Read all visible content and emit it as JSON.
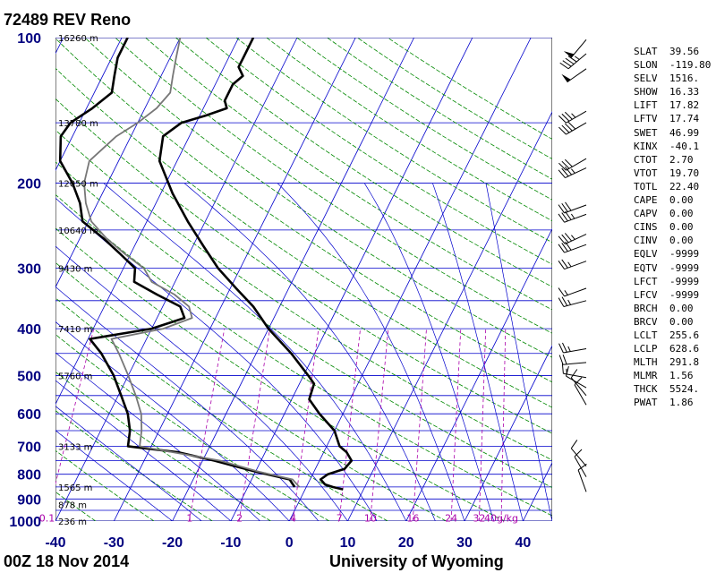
{
  "header": {
    "station": "72489 REV Reno"
  },
  "footer": {
    "time": "00Z 18 Nov 2014",
    "source": "University of Wyoming"
  },
  "colors": {
    "isotherm": "#0000cc",
    "isobar": "#0000cc",
    "dry_adiabat": "#008800",
    "moist_adiabat": "#0000cc",
    "mixing_ratio": "#aa00aa",
    "temperature": "#000000",
    "dewpoint": "#000000",
    "virtual": "#777777"
  },
  "indices": [
    {
      "key": "SLAT",
      "value": "39.56"
    },
    {
      "key": "SLON",
      "value": "-119.80"
    },
    {
      "key": "SELV",
      "value": "1516."
    },
    {
      "key": "SHOW",
      "value": "16.33"
    },
    {
      "key": "LIFT",
      "value": "17.82"
    },
    {
      "key": "LFTV",
      "value": "17.74"
    },
    {
      "key": "SWET",
      "value": "46.99"
    },
    {
      "key": "KINX",
      "value": "-40.1"
    },
    {
      "key": "CTOT",
      "value": "2.70"
    },
    {
      "key": "VTOT",
      "value": "19.70"
    },
    {
      "key": "TOTL",
      "value": "22.40"
    },
    {
      "key": "CAPE",
      "value": "0.00"
    },
    {
      "key": "CAPV",
      "value": "0.00"
    },
    {
      "key": "CINS",
      "value": "0.00"
    },
    {
      "key": "CINV",
      "value": "0.00"
    },
    {
      "key": "EQLV",
      "value": "-9999"
    },
    {
      "key": "EQTV",
      "value": "-9999"
    },
    {
      "key": "LFCT",
      "value": "-9999"
    },
    {
      "key": "LFCV",
      "value": "-9999"
    },
    {
      "key": "BRCH",
      "value": "0.00"
    },
    {
      "key": "BRCV",
      "value": "0.00"
    },
    {
      "key": "LCLT",
      "value": "255.6"
    },
    {
      "key": "LCLP",
      "value": "628.6"
    },
    {
      "key": "MLTH",
      "value": "291.8"
    },
    {
      "key": "MLMR",
      "value": "1.56"
    },
    {
      "key": "THCK",
      "value": "5524."
    },
    {
      "key": "PWAT",
      "value": "1.86"
    }
  ],
  "chart_data": {
    "type": "line",
    "xlim": [
      -40,
      45
    ],
    "ylim": [
      1000,
      100
    ],
    "y_scale": "log",
    "x_ticks": [
      "-40",
      "-30",
      "-20",
      "-10",
      "0",
      "10",
      "20",
      "30",
      "40"
    ],
    "pressure_ticks": [
      "100",
      "200",
      "300",
      "400",
      "500",
      "600",
      "700",
      "800",
      "900",
      "1000"
    ],
    "height_labels": [
      {
        "p": 100,
        "label": "16260 m"
      },
      {
        "p": 150,
        "label": "13780 m"
      },
      {
        "p": 200,
        "label": "12050 m"
      },
      {
        "p": 250,
        "label": "10640 m"
      },
      {
        "p": 300,
        "label": "9430 m"
      },
      {
        "p": 400,
        "label": "7410 m"
      },
      {
        "p": 500,
        "label": "5760 m"
      },
      {
        "p": 700,
        "label": "3133 m"
      },
      {
        "p": 850,
        "label": "1565 m"
      },
      {
        "p": 925,
        "label": "878 m"
      },
      {
        "p": 1000,
        "label": "236 m"
      }
    ],
    "mixing_ratio_labels": [
      {
        "w": 0.1,
        "label": "0.1"
      },
      {
        "w": 1,
        "label": "1"
      },
      {
        "w": 2,
        "label": "2"
      },
      {
        "w": 4,
        "label": "4"
      },
      {
        "w": 7,
        "label": "7"
      },
      {
        "w": 10,
        "label": "10"
      },
      {
        "w": 16,
        "label": "16"
      },
      {
        "w": 24,
        "label": "24"
      },
      {
        "w": 32,
        "label": "32"
      },
      {
        "w": 40,
        "label": "40g/kg"
      }
    ],
    "series": [
      {
        "role": "temperature",
        "points": [
          {
            "p": 860,
            "t": 6.5
          },
          {
            "p": 850,
            "t": 4.5
          },
          {
            "p": 840,
            "t": 3.0
          },
          {
            "p": 820,
            "t": 1.8
          },
          {
            "p": 800,
            "t": 2.6
          },
          {
            "p": 780,
            "t": 5.0
          },
          {
            "p": 750,
            "t": 5.5
          },
          {
            "p": 720,
            "t": 3.9
          },
          {
            "p": 700,
            "t": 2.2
          },
          {
            "p": 650,
            "t": 0.0
          },
          {
            "p": 600,
            "t": -4.0
          },
          {
            "p": 560,
            "t": -7.0
          },
          {
            "p": 520,
            "t": -7.5
          },
          {
            "p": 500,
            "t": -9.2
          },
          {
            "p": 450,
            "t": -14.0
          },
          {
            "p": 400,
            "t": -20.0
          },
          {
            "p": 360,
            "t": -24.5
          },
          {
            "p": 330,
            "t": -29.0
          },
          {
            "p": 300,
            "t": -33.8
          },
          {
            "p": 270,
            "t": -38.2
          },
          {
            "p": 240,
            "t": -43.0
          },
          {
            "p": 210,
            "t": -48.0
          },
          {
            "p": 180,
            "t": -53.0
          },
          {
            "p": 160,
            "t": -54.5
          },
          {
            "p": 150,
            "t": -52.5
          },
          {
            "p": 145,
            "t": -49.0
          },
          {
            "p": 140,
            "t": -46.0
          },
          {
            "p": 135,
            "t": -47.0
          },
          {
            "p": 125,
            "t": -47.0
          },
          {
            "p": 120,
            "t": -46.0
          },
          {
            "p": 115,
            "t": -47.5
          },
          {
            "p": 110,
            "t": -47.5
          },
          {
            "p": 100,
            "t": -47.5
          }
        ]
      },
      {
        "role": "dewpoint",
        "points": [
          {
            "p": 850,
            "t": -2.0
          },
          {
            "p": 840,
            "t": -2.5
          },
          {
            "p": 820,
            "t": -3.5
          },
          {
            "p": 790,
            "t": -10.0
          },
          {
            "p": 750,
            "t": -18.0
          },
          {
            "p": 720,
            "t": -25.0
          },
          {
            "p": 705,
            "t": -32.0
          },
          {
            "p": 700,
            "t": -34.0
          },
          {
            "p": 650,
            "t": -35.0
          },
          {
            "p": 600,
            "t": -36.8
          },
          {
            "p": 550,
            "t": -39.5
          },
          {
            "p": 500,
            "t": -42.5
          },
          {
            "p": 450,
            "t": -46.5
          },
          {
            "p": 420,
            "t": -49.7
          },
          {
            "p": 400,
            "t": -40.0
          },
          {
            "p": 380,
            "t": -35.3
          },
          {
            "p": 360,
            "t": -37.0
          },
          {
            "p": 340,
            "t": -42.0
          },
          {
            "p": 320,
            "t": -47.0
          },
          {
            "p": 300,
            "t": -48.0
          },
          {
            "p": 280,
            "t": -51.8
          },
          {
            "p": 260,
            "t": -56.0
          },
          {
            "p": 240,
            "t": -61.0
          },
          {
            "p": 220,
            "t": -63.0
          },
          {
            "p": 200,
            "t": -66.0
          },
          {
            "p": 180,
            "t": -70.0
          },
          {
            "p": 160,
            "t": -72.0
          },
          {
            "p": 150,
            "t": -71.5
          },
          {
            "p": 140,
            "t": -69.0
          },
          {
            "p": 130,
            "t": -67.0
          },
          {
            "p": 120,
            "t": -68.0
          },
          {
            "p": 110,
            "t": -69.0
          },
          {
            "p": 100,
            "t": -69.0
          }
        ]
      },
      {
        "role": "virtual-temperature",
        "points": [
          {
            "p": 850,
            "t": -1.2
          },
          {
            "p": 820,
            "t": -3.0
          },
          {
            "p": 790,
            "t": -9.5
          },
          {
            "p": 750,
            "t": -17.0
          },
          {
            "p": 710,
            "t": -29.0
          },
          {
            "p": 700,
            "t": -32.0
          },
          {
            "p": 650,
            "t": -33.0
          },
          {
            "p": 600,
            "t": -34.5
          },
          {
            "p": 550,
            "t": -37.0
          },
          {
            "p": 500,
            "t": -40.0
          },
          {
            "p": 450,
            "t": -43.5
          },
          {
            "p": 420,
            "t": -46.0
          },
          {
            "p": 400,
            "t": -38.0
          },
          {
            "p": 380,
            "t": -34.0
          },
          {
            "p": 360,
            "t": -35.5
          },
          {
            "p": 340,
            "t": -39.0
          },
          {
            "p": 320,
            "t": -44.0
          },
          {
            "p": 300,
            "t": -46.5
          },
          {
            "p": 280,
            "t": -51.0
          },
          {
            "p": 260,
            "t": -55.5
          },
          {
            "p": 240,
            "t": -59.5
          },
          {
            "p": 220,
            "t": -62.0
          },
          {
            "p": 200,
            "t": -64.0
          },
          {
            "p": 180,
            "t": -65.0
          },
          {
            "p": 160,
            "t": -62.5
          },
          {
            "p": 150,
            "t": -60.0
          },
          {
            "p": 140,
            "t": -58.0
          },
          {
            "p": 130,
            "t": -57.0
          },
          {
            "p": 120,
            "t": -58.0
          },
          {
            "p": 110,
            "t": -59.0
          },
          {
            "p": 100,
            "t": -60.0
          }
        ]
      }
    ],
    "wind_barbs": [
      {
        "p": 101,
        "dir": 220,
        "kt": 50
      },
      {
        "p": 108,
        "dir": 230,
        "kt": 45
      },
      {
        "p": 116,
        "dir": 235,
        "kt": 50
      },
      {
        "p": 142,
        "dir": 240,
        "kt": 35
      },
      {
        "p": 150,
        "dir": 240,
        "kt": 40
      },
      {
        "p": 178,
        "dir": 240,
        "kt": 30
      },
      {
        "p": 186,
        "dir": 245,
        "kt": 35
      },
      {
        "p": 222,
        "dir": 250,
        "kt": 30
      },
      {
        "p": 232,
        "dir": 250,
        "kt": 35
      },
      {
        "p": 255,
        "dir": 245,
        "kt": 35
      },
      {
        "p": 268,
        "dir": 250,
        "kt": 30
      },
      {
        "p": 290,
        "dir": 250,
        "kt": 25
      },
      {
        "p": 330,
        "dir": 250,
        "kt": 15
      },
      {
        "p": 350,
        "dir": 255,
        "kt": 25
      },
      {
        "p": 440,
        "dir": 260,
        "kt": 25
      },
      {
        "p": 470,
        "dir": 265,
        "kt": 20
      },
      {
        "p": 505,
        "dir": 280,
        "kt": 15
      },
      {
        "p": 530,
        "dir": 300,
        "kt": 10
      },
      {
        "p": 550,
        "dir": 320,
        "kt": 10
      },
      {
        "p": 575,
        "dir": 330,
        "kt": 10
      },
      {
        "p": 770,
        "dir": 320,
        "kt": 10
      },
      {
        "p": 810,
        "dir": 330,
        "kt": 10
      },
      {
        "p": 870,
        "dir": 340,
        "kt": 10
      }
    ]
  }
}
